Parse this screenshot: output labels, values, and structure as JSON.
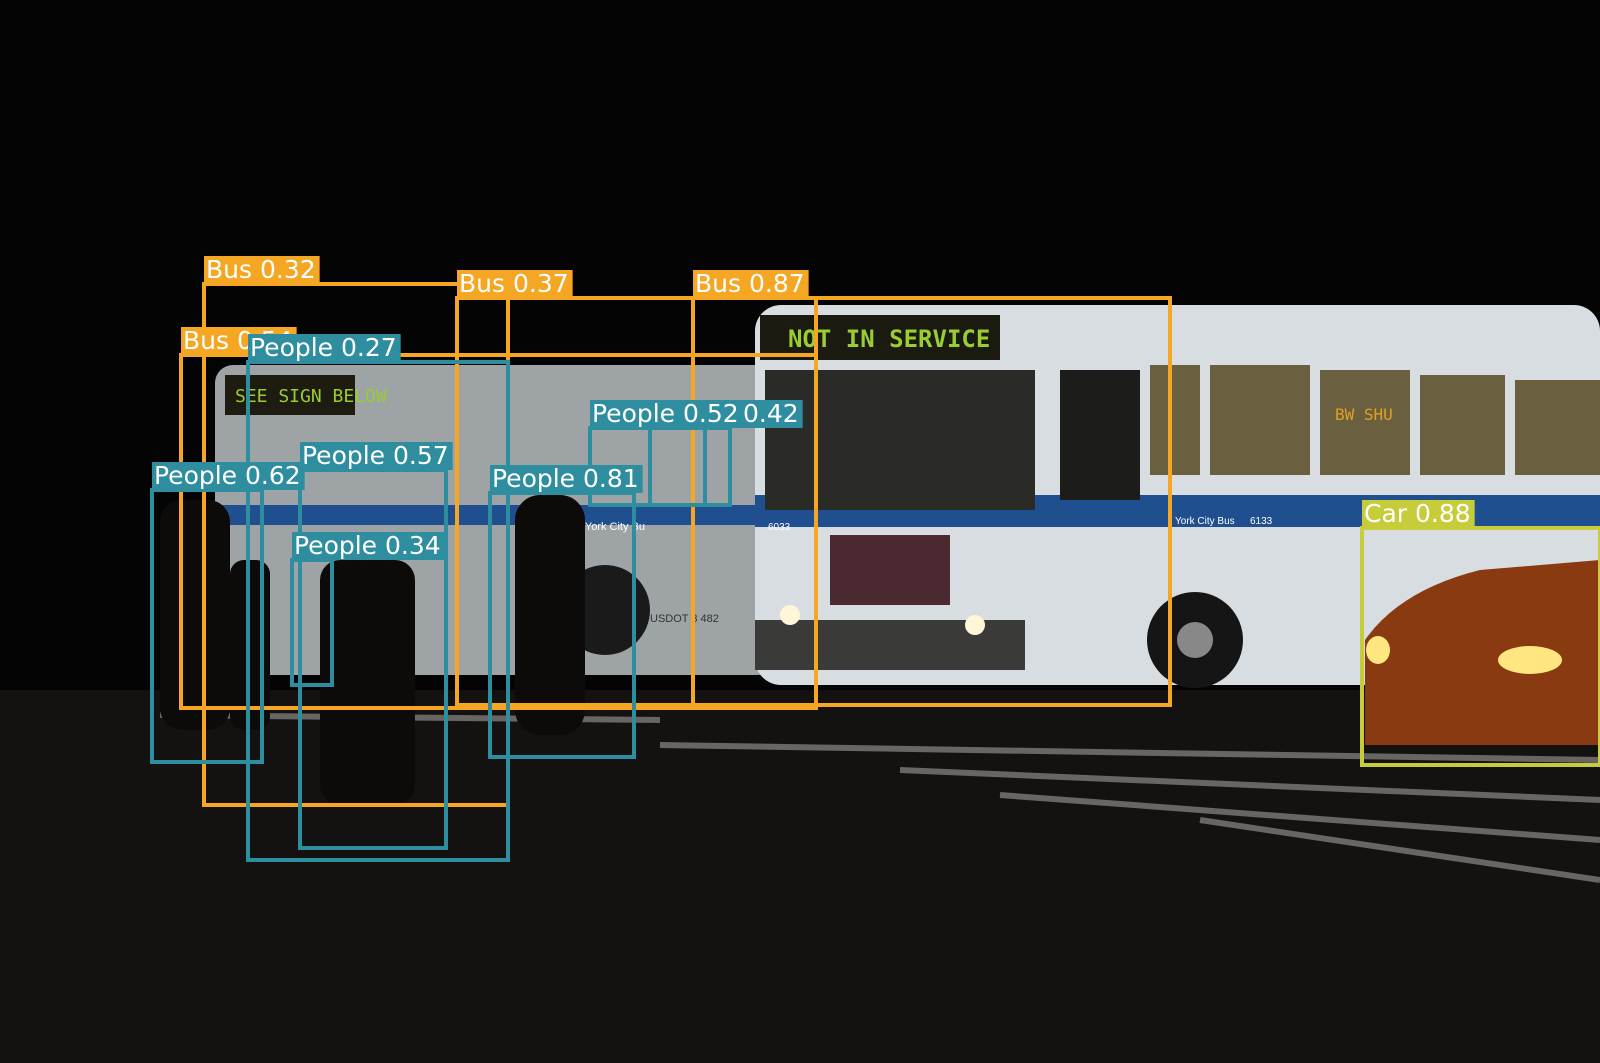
{
  "scene": {
    "bus_front_sign": "NOT IN SERVICE",
    "bus_back_sign": "SEE SIGN BELOW",
    "bus_side_sign": "BW SHU",
    "bus_fleet_text": "York City Bus",
    "bus_fleet_number": "6133",
    "bus_front_number": "6033",
    "bus_usdot": "USDOT 3  482",
    "second_bus_side_text": "New York City Bu"
  },
  "palette": {
    "bus": "#f5a623",
    "people": "#2e8ea0",
    "car": "#c7cd3a",
    "sky": "#050404",
    "road": "#1a1816",
    "bus_body": "#d8dde2",
    "bus_stripe": "#1f4f8f",
    "sign_led": "#9acd32"
  },
  "detections": [
    {
      "label": "Bus 0.32",
      "class": "bus"
    },
    {
      "label": "Bus 0.37",
      "class": "bus"
    },
    {
      "label": "Bus 0.87",
      "class": "bus"
    },
    {
      "label": "Bus 0.54",
      "class": "bus"
    },
    {
      "label": "People 0.27",
      "class": "people"
    },
    {
      "label": "People 0.42",
      "class": "people"
    },
    {
      "label": "People 0.52",
      "class": "people"
    },
    {
      "label": "People 0.57",
      "class": "people"
    },
    {
      "label": "People 0.62",
      "class": "people"
    },
    {
      "label": "People 0.81",
      "class": "people"
    },
    {
      "label": "People 0.34",
      "class": "people"
    },
    {
      "label": "Car 0.88",
      "class": "car"
    }
  ]
}
